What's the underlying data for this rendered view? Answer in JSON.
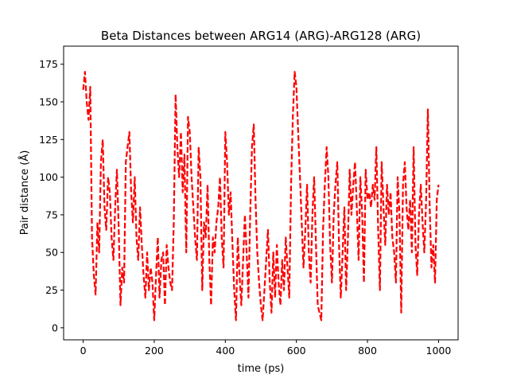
{
  "chart_data": {
    "type": "line",
    "title": "Beta Distances between ARG14 (ARG)-ARG128 (ARG)",
    "xlabel": "time (ps)",
    "ylabel": "Pair distance (Å)",
    "xlim": [
      -55,
      1055
    ],
    "ylim": [
      -8,
      187
    ],
    "xticks": [
      0,
      200,
      400,
      600,
      800,
      1000
    ],
    "yticks": [
      0,
      25,
      50,
      75,
      100,
      125,
      150,
      175
    ],
    "grid": false,
    "line_style": "dashed",
    "series": [
      {
        "color": "#ff0000",
        "x": [
          0,
          5,
          10,
          15,
          20,
          25,
          30,
          35,
          40,
          45,
          50,
          55,
          60,
          65,
          70,
          75,
          80,
          85,
          90,
          95,
          100,
          105,
          110,
          115,
          120,
          125,
          130,
          135,
          140,
          145,
          150,
          155,
          160,
          165,
          170,
          175,
          180,
          185,
          190,
          195,
          200,
          205,
          210,
          215,
          220,
          225,
          230,
          235,
          240,
          245,
          250,
          255,
          260,
          265,
          270,
          275,
          280,
          285,
          290,
          295,
          300,
          305,
          310,
          315,
          320,
          325,
          330,
          335,
          340,
          345,
          350,
          355,
          360,
          365,
          370,
          375,
          380,
          385,
          390,
          395,
          400,
          405,
          410,
          415,
          420,
          425,
          430,
          435,
          440,
          445,
          450,
          455,
          460,
          465,
          470,
          475,
          480,
          485,
          490,
          495,
          500,
          505,
          510,
          515,
          520,
          525,
          530,
          535,
          540,
          545,
          550,
          555,
          560,
          565,
          570,
          575,
          580,
          585,
          590,
          595,
          600,
          605,
          610,
          615,
          620,
          625,
          630,
          635,
          640,
          645,
          650,
          655,
          660,
          665,
          670,
          675,
          680,
          685,
          690,
          695,
          700,
          705,
          710,
          715,
          720,
          725,
          730,
          735,
          740,
          745,
          750,
          755,
          760,
          765,
          770,
          775,
          780,
          785,
          790,
          795,
          800,
          805,
          810,
          815,
          820,
          825,
          830,
          835,
          840,
          845,
          850,
          855,
          860,
          865,
          870,
          875,
          880,
          885,
          890,
          895,
          900,
          905,
          910,
          915,
          920,
          925,
          930,
          935,
          940,
          945,
          950,
          955,
          960,
          965,
          970,
          975,
          980,
          985,
          990,
          995,
          1000
        ],
        "values": [
          158,
          170,
          150,
          138,
          160,
          60,
          35,
          22,
          70,
          50,
          110,
          125,
          80,
          65,
          100,
          90,
          60,
          45,
          80,
          105,
          65,
          15,
          40,
          30,
          110,
          120,
          130,
          90,
          70,
          100,
          60,
          45,
          80,
          55,
          35,
          20,
          50,
          25,
          40,
          30,
          5,
          35,
          60,
          20,
          45,
          50,
          15,
          55,
          40,
          30,
          25,
          70,
          155,
          120,
          100,
          130,
          90,
          115,
          50,
          140,
          130,
          100,
          80,
          60,
          45,
          120,
          100,
          25,
          70,
          60,
          95,
          45,
          15,
          60,
          50,
          70,
          80,
          100,
          60,
          40,
          130,
          110,
          75,
          90,
          55,
          25,
          5,
          60,
          35,
          15,
          45,
          75,
          50,
          20,
          75,
          120,
          135,
          85,
          50,
          30,
          15,
          5,
          25,
          45,
          65,
          30,
          10,
          50,
          20,
          55,
          30,
          15,
          45,
          25,
          60,
          40,
          20,
          95,
          140,
          170,
          160,
          130,
          100,
          70,
          40,
          65,
          95,
          50,
          30,
          75,
          100,
          55,
          15,
          10,
          5,
          65,
          95,
          120,
          100,
          55,
          30,
          75,
          95,
          110,
          55,
          20,
          50,
          80,
          25,
          60,
          105,
          75,
          95,
          110,
          80,
          45,
          100,
          75,
          30,
          105,
          85,
          90,
          80,
          95,
          85,
          120,
          65,
          25,
          110,
          80,
          55,
          95,
          75,
          90,
          60,
          50,
          30,
          100,
          75,
          10,
          95,
          110,
          80,
          65,
          85,
          50,
          120,
          55,
          35,
          75,
          95,
          70,
          50,
          85,
          145,
          80,
          40,
          55,
          30,
          85,
          95
        ]
      }
    ]
  }
}
